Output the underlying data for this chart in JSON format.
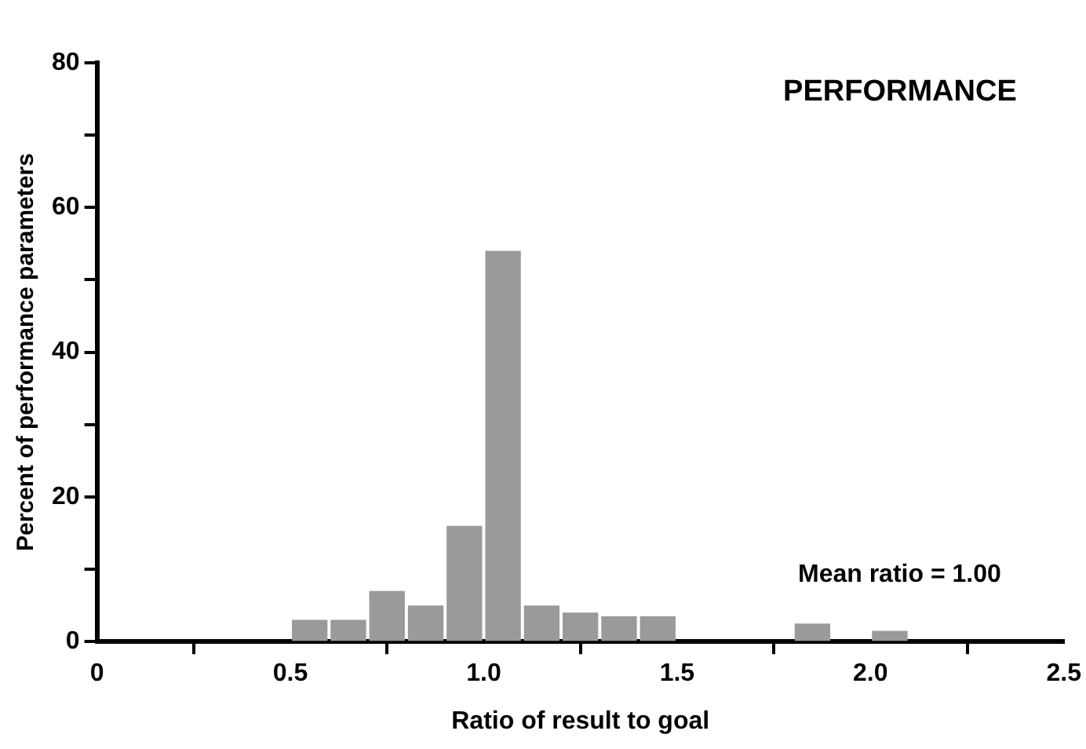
{
  "chart_data": {
    "type": "histogram",
    "title": "PERFORMANCE",
    "xlabel": "Ratio of result to goal",
    "ylabel": "Percent of performance parameters",
    "bins": [
      0.5,
      0.6,
      0.7,
      0.8,
      0.9,
      1.0,
      1.1,
      1.2,
      1.3,
      1.4,
      1.5,
      1.6,
      1.7,
      1.8,
      1.9,
      2.0,
      2.1
    ],
    "values": [
      3,
      3,
      7,
      5,
      16,
      54,
      5,
      4,
      3.5,
      3.5,
      0,
      0,
      0,
      2.5,
      0,
      1.5
    ],
    "color": "#9a9a9a",
    "xlim": [
      0,
      2.5
    ],
    "xticks": [
      0,
      0.5,
      {
        "value": 1,
        "label": "1.0"
      },
      1.5,
      {
        "value": 2,
        "label": "2.0"
      },
      2.5
    ],
    "ylim": [
      0,
      80
    ],
    "yticks": [
      0,
      {
        "value": 10,
        "label": null
      },
      20,
      {
        "value": 30,
        "label": null
      },
      40,
      {
        "value": 50,
        "label": null
      },
      60,
      {
        "value": 70,
        "label": null
      },
      80
    ],
    "annotations": [
      "Mean ratio = 1.00"
    ],
    "grid": false,
    "legend": false
  }
}
